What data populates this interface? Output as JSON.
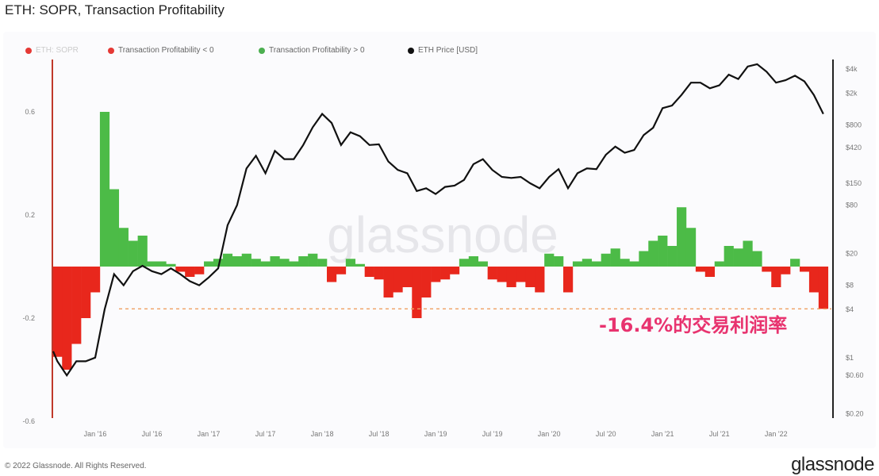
{
  "title": "ETH: SOPR, Transaction Profitability",
  "legend": [
    {
      "label": "ETH: SOPR",
      "color": "#e53935",
      "muted": true
    },
    {
      "label": "Transaction Profitability < 0",
      "color": "#e53935"
    },
    {
      "label": "Transaction Profitability > 0",
      "color": "#4caf50"
    },
    {
      "label": "ETH Price [USD]",
      "color": "#111111"
    }
  ],
  "footer": "© 2022 Glassnode. All Rights Reserved.",
  "logo": "glassnode",
  "watermark": "glassnode",
  "annotation": "-16.4%的交易利润率",
  "colors": {
    "negative": "#e8271c",
    "positive": "#4cbb47",
    "price": "#111111",
    "dashed": "#f0a060",
    "annotation": "#e8336f"
  },
  "chart_data": {
    "type": "area",
    "title": "ETH: SOPR, Transaction Profitability",
    "x_ticks": [
      "Jan '16",
      "Jul '16",
      "Jan '17",
      "Jul '17",
      "Jan '18",
      "Jul '18",
      "Jan '19",
      "Jul '19",
      "Jan '20",
      "Jul '20",
      "Jan '21",
      "Jul '21",
      "Jan '22"
    ],
    "left_axis": {
      "ticks": [
        "0.6",
        "0.2",
        "-0.2",
        "-0.6"
      ],
      "values": [
        0.6,
        0.2,
        -0.2,
        -0.6
      ],
      "scale": "linear"
    },
    "right_axis": {
      "ticks": [
        "$4k",
        "$2k",
        "$800",
        "$420",
        "$150",
        "$80",
        "$20",
        "$8",
        "$4",
        "$1",
        "$0.60",
        "$0.20"
      ],
      "values": [
        4000,
        2000,
        800,
        420,
        150,
        80,
        20,
        8,
        4,
        1,
        0.6,
        0.2
      ],
      "scale": "log"
    },
    "x": [
      "2015-08",
      "2015-09",
      "2015-10",
      "2015-11",
      "2015-12",
      "2016-01",
      "2016-02",
      "2016-03",
      "2016-04",
      "2016-05",
      "2016-06",
      "2016-07",
      "2016-08",
      "2016-09",
      "2016-10",
      "2016-11",
      "2016-12",
      "2017-01",
      "2017-02",
      "2017-03",
      "2017-04",
      "2017-05",
      "2017-06",
      "2017-07",
      "2017-08",
      "2017-09",
      "2017-10",
      "2017-11",
      "2017-12",
      "2018-01",
      "2018-02",
      "2018-03",
      "2018-04",
      "2018-05",
      "2018-06",
      "2018-07",
      "2018-08",
      "2018-09",
      "2018-10",
      "2018-11",
      "2018-12",
      "2019-01",
      "2019-02",
      "2019-03",
      "2019-04",
      "2019-05",
      "2019-06",
      "2019-07",
      "2019-08",
      "2019-09",
      "2019-10",
      "2019-11",
      "2019-12",
      "2020-01",
      "2020-02",
      "2020-03",
      "2020-04",
      "2020-05",
      "2020-06",
      "2020-07",
      "2020-08",
      "2020-09",
      "2020-10",
      "2020-11",
      "2020-12",
      "2021-01",
      "2021-02",
      "2021-03",
      "2021-04",
      "2021-05",
      "2021-06",
      "2021-07",
      "2021-08",
      "2021-09",
      "2021-10",
      "2021-11",
      "2021-12",
      "2022-01",
      "2022-02",
      "2022-03",
      "2022-04",
      "2022-05",
      "2022-06"
    ],
    "series": [
      {
        "name": "Transaction Profitability",
        "axis": "left",
        "values": [
          -0.3,
          -0.35,
          -0.4,
          -0.3,
          -0.2,
          -0.1,
          0.6,
          0.3,
          0.15,
          0.1,
          0.12,
          0.02,
          0.02,
          0.01,
          -0.02,
          -0.04,
          -0.03,
          0.02,
          0.03,
          0.05,
          0.04,
          0.05,
          0.03,
          0.02,
          0.04,
          0.03,
          0.02,
          0.04,
          0.05,
          0.03,
          -0.06,
          -0.03,
          0.03,
          0.01,
          -0.04,
          -0.05,
          -0.12,
          -0.1,
          -0.08,
          -0.2,
          -0.12,
          -0.06,
          -0.05,
          -0.03,
          0.03,
          0.04,
          0.02,
          -0.05,
          -0.06,
          -0.08,
          -0.06,
          -0.08,
          -0.1,
          0.05,
          0.04,
          -0.1,
          0.02,
          0.03,
          0.02,
          0.05,
          0.07,
          0.03,
          0.02,
          0.06,
          0.1,
          0.12,
          0.08,
          0.23,
          0.15,
          -0.02,
          -0.04,
          0.02,
          0.08,
          0.07,
          0.1,
          0.06,
          -0.02,
          -0.08,
          -0.03,
          0.03,
          -0.02,
          -0.1,
          -0.164
        ]
      },
      {
        "name": "ETH Price [USD]",
        "axis": "right",
        "values": [
          1.2,
          0.9,
          0.6,
          0.9,
          0.9,
          1.0,
          4,
          11,
          8,
          12,
          14,
          12,
          11,
          13,
          11,
          9,
          8,
          10,
          13,
          45,
          80,
          230,
          330,
          200,
          380,
          300,
          300,
          450,
          750,
          1100,
          850,
          450,
          650,
          580,
          450,
          460,
          280,
          220,
          200,
          120,
          130,
          110,
          135,
          140,
          165,
          260,
          300,
          220,
          180,
          175,
          180,
          150,
          130,
          180,
          225,
          130,
          200,
          230,
          225,
          340,
          430,
          360,
          390,
          600,
          740,
          1300,
          1400,
          1900,
          2700,
          2700,
          2300,
          2500,
          3400,
          3000,
          4300,
          4600,
          3700,
          2700,
          2900,
          3300,
          2800,
          1900,
          1100
        ]
      }
    ],
    "reference_line": {
      "value": -0.164,
      "style": "dashed"
    }
  }
}
